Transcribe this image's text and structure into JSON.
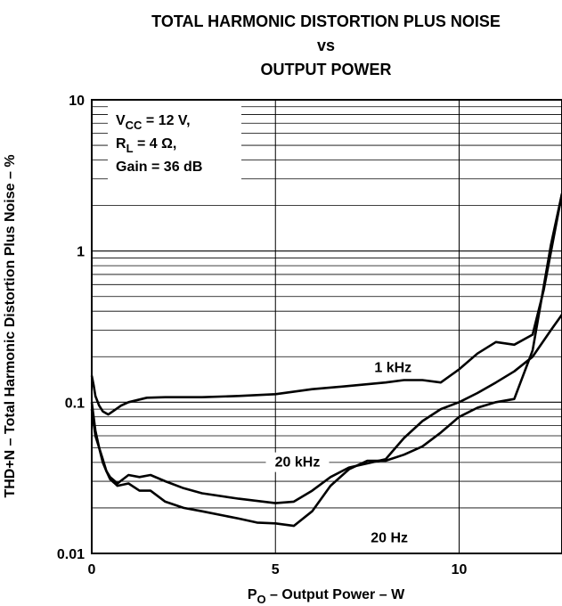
{
  "chart_data": {
    "type": "line",
    "title_lines": [
      "TOTAL HARMONIC DISTORTION PLUS NOISE",
      "vs",
      "OUTPUT POWER"
    ],
    "xlabel": {
      "main": "P",
      "sub": "O",
      "rest": " – Output Power – W"
    },
    "ylabel": "THD+N – Total Harmonic Distortion Plus Noise – %",
    "xlim": [
      0,
      12.8
    ],
    "ylim": [
      0.01,
      10
    ],
    "yscale": "log",
    "x_ticks": [
      "0",
      "5",
      "10"
    ],
    "y_ticks": [
      "0.01",
      "0.1",
      "1",
      "10"
    ],
    "grid": true,
    "conditions": [
      {
        "main": "V",
        "sub": "CC",
        "rest": " = 12 V,"
      },
      {
        "main": "R",
        "sub": "L",
        "rest": " = 4 Ω,"
      },
      {
        "main": "Gain = 36 dB",
        "sub": "",
        "rest": ""
      }
    ],
    "series": [
      {
        "name": "1 kHz",
        "x": [
          0.0,
          0.05,
          0.1,
          0.2,
          0.3,
          0.45,
          0.6,
          0.8,
          1.0,
          1.5,
          2.0,
          3.0,
          4.0,
          5.0,
          6.0,
          7.0,
          8.0,
          8.5,
          9.0,
          9.5,
          10.0,
          10.5,
          11.0,
          11.5,
          12.0,
          12.3,
          12.8
        ],
        "y": [
          0.15,
          0.13,
          0.11,
          0.095,
          0.087,
          0.083,
          0.088,
          0.095,
          0.1,
          0.107,
          0.108,
          0.108,
          0.11,
          0.113,
          0.122,
          0.128,
          0.135,
          0.14,
          0.14,
          0.135,
          0.165,
          0.21,
          0.25,
          0.24,
          0.28,
          0.55,
          2.4
        ]
      },
      {
        "name": "20 kHz",
        "x": [
          0.0,
          0.1,
          0.2,
          0.3,
          0.4,
          0.5,
          0.7,
          1.0,
          1.3,
          1.6,
          2.0,
          2.5,
          3.0,
          4.0,
          5.0,
          5.5,
          6.0,
          6.5,
          7.0,
          8.0,
          8.5,
          9.0,
          9.5,
          10.0,
          10.5,
          11.0,
          11.5,
          12.0,
          12.5,
          12.8
        ],
        "y": [
          0.09,
          0.06,
          0.05,
          0.042,
          0.035,
          0.032,
          0.029,
          0.033,
          0.032,
          0.033,
          0.03,
          0.027,
          0.025,
          0.023,
          0.0215,
          0.022,
          0.026,
          0.032,
          0.037,
          0.042,
          0.058,
          0.075,
          0.09,
          0.1,
          0.115,
          0.135,
          0.16,
          0.2,
          0.3,
          0.38
        ]
      },
      {
        "name": "20 Hz",
        "x": [
          0.0,
          0.1,
          0.2,
          0.3,
          0.4,
          0.5,
          0.7,
          1.0,
          1.3,
          1.6,
          2.0,
          2.5,
          3.0,
          4.0,
          4.5,
          5.0,
          5.5,
          6.0,
          6.5,
          7.0,
          7.5,
          8.0,
          8.5,
          9.0,
          9.5,
          10.0,
          10.5,
          11.0,
          11.5,
          12.0,
          12.5,
          12.8
        ],
        "y": [
          0.1,
          0.065,
          0.05,
          0.04,
          0.035,
          0.031,
          0.028,
          0.029,
          0.026,
          0.026,
          0.022,
          0.02,
          0.019,
          0.017,
          0.016,
          0.0158,
          0.0152,
          0.019,
          0.028,
          0.036,
          0.041,
          0.041,
          0.045,
          0.051,
          0.063,
          0.08,
          0.092,
          0.1,
          0.105,
          0.22,
          1.1,
          2.4
        ]
      }
    ],
    "series_label_x": [
      8.2,
      5.6,
      8.1
    ],
    "series_label_y": [
      0.16,
      0.038,
      0.012
    ]
  }
}
